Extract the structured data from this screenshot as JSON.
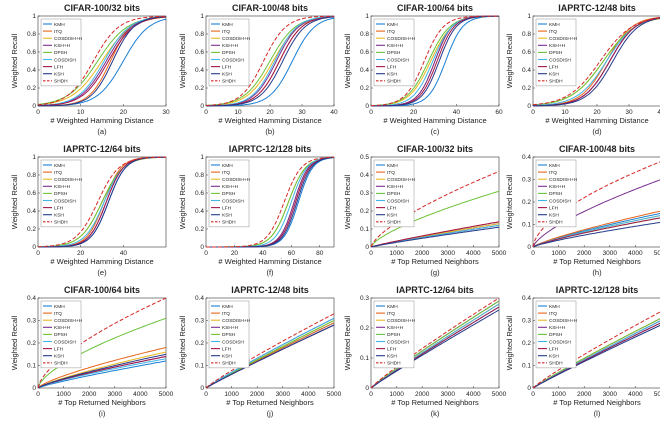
{
  "figure": {
    "legend_labels": [
      "KMH",
      "ITQ",
      "COSDISH+H",
      "KSH+H",
      "DPSH",
      "COSDISH",
      "LFH",
      "KSH",
      "SHDH"
    ],
    "series_colors": [
      "#1a7fd4",
      "#e8661a",
      "#e8b820",
      "#7a2f8f",
      "#6cc23a",
      "#3fb6e6",
      "#a3174a",
      "#243a8a",
      "#d62828"
    ]
  },
  "chart_data": [
    {
      "type": "line",
      "title": "CIFAR-100/32 bits",
      "xlabel": "# Weighted Hamming Distance",
      "ylabel": "Weighted Recall",
      "caption": "(a)",
      "xlim": [
        0,
        30
      ],
      "ylim": [
        0,
        1
      ],
      "xticks": [
        0,
        10,
        20,
        30
      ],
      "yticks": [
        0,
        0.2,
        0.4,
        0.6,
        0.8,
        1
      ],
      "legend": "top-left",
      "kind": "ham",
      "series": [
        {
          "name": "KMH",
          "center": 20,
          "width": 3.0
        },
        {
          "name": "ITQ",
          "center": 17,
          "width": 2.5
        },
        {
          "name": "COSDISH+H",
          "center": 15,
          "width": 3.5
        },
        {
          "name": "KSH+H",
          "center": 16,
          "width": 3.0
        },
        {
          "name": "DPSH",
          "center": 14,
          "width": 3.5
        },
        {
          "name": "COSDISH",
          "center": 15.5,
          "width": 3.0
        },
        {
          "name": "LFH",
          "center": 16.5,
          "width": 3.0
        },
        {
          "name": "KSH",
          "center": 17.5,
          "width": 2.5
        },
        {
          "name": "SHDH",
          "center": 13,
          "width": 3.0
        }
      ]
    },
    {
      "type": "line",
      "title": "CIFAR-100/48 bits",
      "xlabel": "# Weighted Hamming Distance",
      "ylabel": "Weighted Recall",
      "caption": "(b)",
      "xlim": [
        0,
        40
      ],
      "ylim": [
        0,
        1
      ],
      "xticks": [
        0,
        10,
        20,
        30,
        40
      ],
      "yticks": [
        0,
        0.2,
        0.4,
        0.6,
        0.8,
        1
      ],
      "legend": "top-left",
      "kind": "ham",
      "series": [
        {
          "name": "KMH",
          "center": 27,
          "width": 3.5
        },
        {
          "name": "ITQ",
          "center": 23,
          "width": 3.5
        },
        {
          "name": "COSDISH+H",
          "center": 21,
          "width": 4.0
        },
        {
          "name": "KSH+H",
          "center": 22,
          "width": 3.5
        },
        {
          "name": "DPSH",
          "center": 20,
          "width": 4.0
        },
        {
          "name": "COSDISH",
          "center": 21.5,
          "width": 3.5
        },
        {
          "name": "LFH",
          "center": 23,
          "width": 3.5
        },
        {
          "name": "KSH",
          "center": 24,
          "width": 3.5
        },
        {
          "name": "SHDH",
          "center": 18,
          "width": 3.5
        }
      ]
    },
    {
      "type": "line",
      "title": "CIFAR-100/64 bits",
      "xlabel": "# Weighted Hamming Distance",
      "ylabel": "Weighted Recall",
      "caption": "(c)",
      "xlim": [
        0,
        60
      ],
      "ylim": [
        0,
        1
      ],
      "xticks": [
        0,
        20,
        40,
        60
      ],
      "yticks": [
        0,
        0.2,
        0.4,
        0.6,
        0.8,
        1
      ],
      "legend": "top-left",
      "kind": "ham",
      "series": [
        {
          "name": "KMH",
          "center": 35,
          "width": 4.0
        },
        {
          "name": "ITQ",
          "center": 30,
          "width": 4.0
        },
        {
          "name": "COSDISH+H",
          "center": 28,
          "width": 5.0
        },
        {
          "name": "KSH+H",
          "center": 30,
          "width": 4.0
        },
        {
          "name": "DPSH",
          "center": 27,
          "width": 5.0
        },
        {
          "name": "COSDISH",
          "center": 29,
          "width": 4.5
        },
        {
          "name": "LFH",
          "center": 31,
          "width": 4.0
        },
        {
          "name": "KSH",
          "center": 32,
          "width": 4.0
        },
        {
          "name": "SHDH",
          "center": 25,
          "width": 4.5
        }
      ]
    },
    {
      "type": "line",
      "title": "IAPRTC-12/48 bits",
      "xlabel": "# Weighted Hamming Distance",
      "ylabel": "Weighted Recall",
      "caption": "(d)",
      "xlim": [
        0,
        40
      ],
      "ylim": [
        0,
        1
      ],
      "xticks": [
        0,
        10,
        20,
        30,
        40
      ],
      "yticks": [
        0,
        0.2,
        0.4,
        0.6,
        0.8,
        1
      ],
      "legend": "top-left",
      "kind": "ham",
      "series": [
        {
          "name": "KMH",
          "center": 24,
          "width": 4.0
        },
        {
          "name": "ITQ",
          "center": 23,
          "width": 4.0
        },
        {
          "name": "COSDISH+H",
          "center": 22,
          "width": 5.0
        },
        {
          "name": "KSH+H",
          "center": 24,
          "width": 4.0
        },
        {
          "name": "DPSH",
          "center": 22,
          "width": 5.0
        },
        {
          "name": "COSDISH",
          "center": 23,
          "width": 4.5
        },
        {
          "name": "LFH",
          "center": 24,
          "width": 4.0
        },
        {
          "name": "KSH",
          "center": 25,
          "width": 4.0
        },
        {
          "name": "SHDH",
          "center": 21,
          "width": 5.0
        }
      ]
    },
    {
      "type": "line",
      "title": "IAPRTC-12/64 bits",
      "xlabel": "# Weighted Hamming Distance",
      "ylabel": "Weighted Recall",
      "caption": "(e)",
      "xlim": [
        0,
        60
      ],
      "ylim": [
        0,
        1
      ],
      "xticks": [
        0,
        20,
        40
      ],
      "yticks": [
        0,
        0.2,
        0.4,
        0.6,
        0.8,
        1
      ],
      "legend": "top-left",
      "kind": "ham",
      "series": [
        {
          "name": "KMH",
          "center": 33,
          "width": 4.0
        },
        {
          "name": "ITQ",
          "center": 31,
          "width": 4.0
        },
        {
          "name": "COSDISH+H",
          "center": 30,
          "width": 5.0
        },
        {
          "name": "KSH+H",
          "center": 32,
          "width": 4.0
        },
        {
          "name": "DPSH",
          "center": 30,
          "width": 5.0
        },
        {
          "name": "COSDISH",
          "center": 31,
          "width": 4.5
        },
        {
          "name": "LFH",
          "center": 32,
          "width": 4.0
        },
        {
          "name": "KSH",
          "center": 33,
          "width": 4.0
        },
        {
          "name": "SHDH",
          "center": 28,
          "width": 5.0
        }
      ]
    },
    {
      "type": "line",
      "title": "IAPRTC-12/128 bits",
      "xlabel": "# Weighted Hamming Distance",
      "ylabel": "Weighted Recall",
      "caption": "(f)",
      "xlim": [
        0,
        90
      ],
      "ylim": [
        0,
        1
      ],
      "xticks": [
        0,
        20,
        40,
        60,
        80
      ],
      "yticks": [
        0,
        0.2,
        0.4,
        0.6,
        0.8,
        1
      ],
      "legend": "top-left",
      "kind": "ham",
      "series": [
        {
          "name": "KMH",
          "center": 65,
          "width": 5.0
        },
        {
          "name": "ITQ",
          "center": 62,
          "width": 5.0
        },
        {
          "name": "COSDISH+H",
          "center": 58,
          "width": 6.0
        },
        {
          "name": "KSH+H",
          "center": 62,
          "width": 5.0
        },
        {
          "name": "DPSH",
          "center": 58,
          "width": 6.0
        },
        {
          "name": "COSDISH",
          "center": 60,
          "width": 5.5
        },
        {
          "name": "LFH",
          "center": 63,
          "width": 5.0
        },
        {
          "name": "KSH",
          "center": 64,
          "width": 5.0
        },
        {
          "name": "SHDH",
          "center": 55,
          "width": 6.0
        }
      ]
    },
    {
      "type": "line",
      "title": "CIFAR-100/32 bits",
      "xlabel": "# Top Returned Neighbors",
      "ylabel": "Weighted Recall",
      "caption": "(g)",
      "xlim": [
        0,
        5000
      ],
      "ylim": [
        0,
        0.5
      ],
      "xticks": [
        0,
        1000,
        2000,
        3000,
        4000,
        5000
      ],
      "yticks": [
        0,
        0.1,
        0.2,
        0.3,
        0.4,
        0.5
      ],
      "legend": "top-left",
      "kind": "top",
      "series": [
        {
          "name": "KMH",
          "end": 0.13,
          "power": 0.9
        },
        {
          "name": "ITQ",
          "end": 0.14,
          "power": 0.9
        },
        {
          "name": "COSDISH+H",
          "end": 0.13,
          "power": 0.9
        },
        {
          "name": "KSH+H",
          "end": 0.12,
          "power": 0.9
        },
        {
          "name": "DPSH",
          "end": 0.31,
          "power": 0.7
        },
        {
          "name": "COSDISH",
          "end": 0.12,
          "power": 0.9
        },
        {
          "name": "LFH",
          "end": 0.14,
          "power": 0.9
        },
        {
          "name": "KSH",
          "end": 0.11,
          "power": 0.9
        },
        {
          "name": "SHDH",
          "end": 0.42,
          "power": 0.7
        }
      ]
    },
    {
      "type": "line",
      "title": "CIFAR-100/48 bits",
      "xlabel": "# Top Returned Neighbors",
      "ylabel": "Weighted Recall",
      "caption": "(h)",
      "xlim": [
        0,
        5000
      ],
      "ylim": [
        0,
        0.4
      ],
      "xticks": [
        0,
        1000,
        2000,
        3000,
        4000,
        5000
      ],
      "yticks": [
        0,
        0.1,
        0.2,
        0.3,
        0.4
      ],
      "legend": "top-left",
      "kind": "top",
      "series": [
        {
          "name": "KMH",
          "end": 0.15,
          "power": 0.8
        },
        {
          "name": "ITQ",
          "end": 0.16,
          "power": 0.8
        },
        {
          "name": "COSDISH+H",
          "end": 0.14,
          "power": 0.8
        },
        {
          "name": "KSH+H",
          "end": 0.3,
          "power": 0.7
        },
        {
          "name": "DPSH",
          "end": 0.13,
          "power": 0.8
        },
        {
          "name": "COSDISH",
          "end": 0.14,
          "power": 0.8
        },
        {
          "name": "LFH",
          "end": 0.13,
          "power": 0.8
        },
        {
          "name": "KSH",
          "end": 0.11,
          "power": 0.8
        },
        {
          "name": "SHDH",
          "end": 0.38,
          "power": 0.6
        }
      ]
    },
    {
      "type": "line",
      "title": "CIFAR-100/64 bits",
      "xlabel": "# Top Returned Neighbors",
      "ylabel": "Weighted Recall",
      "caption": "(i)",
      "xlim": [
        0,
        5000
      ],
      "ylim": [
        0,
        0.4
      ],
      "xticks": [
        0,
        1000,
        2000,
        3000,
        4000,
        5000
      ],
      "yticks": [
        0,
        0.1,
        0.2,
        0.3,
        0.4
      ],
      "legend": "top-left",
      "kind": "top",
      "series": [
        {
          "name": "KMH",
          "end": 0.12,
          "power": 0.85
        },
        {
          "name": "ITQ",
          "end": 0.18,
          "power": 0.75
        },
        {
          "name": "COSDISH+H",
          "end": 0.16,
          "power": 0.8
        },
        {
          "name": "KSH+H",
          "end": 0.14,
          "power": 0.8
        },
        {
          "name": "DPSH",
          "end": 0.31,
          "power": 0.65
        },
        {
          "name": "COSDISH",
          "end": 0.13,
          "power": 0.8
        },
        {
          "name": "LFH",
          "end": 0.14,
          "power": 0.8
        },
        {
          "name": "KSH",
          "end": 0.15,
          "power": 0.8
        },
        {
          "name": "SHDH",
          "end": 0.4,
          "power": 0.65
        }
      ]
    },
    {
      "type": "line",
      "title": "IAPRTC-12/48 bits",
      "xlabel": "# Top Returned Neighbors",
      "ylabel": "Weighted Recall",
      "caption": "(j)",
      "xlim": [
        0,
        5000
      ],
      "ylim": [
        0,
        0.4
      ],
      "xticks": [
        0,
        1000,
        2000,
        3000,
        4000,
        5000
      ],
      "yticks": [
        0,
        0.1,
        0.2,
        0.3,
        0.4
      ],
      "legend": "top-left",
      "kind": "top",
      "series": [
        {
          "name": "KMH",
          "end": 0.29,
          "power": 0.95
        },
        {
          "name": "ITQ",
          "end": 0.29,
          "power": 0.95
        },
        {
          "name": "COSDISH+H",
          "end": 0.3,
          "power": 0.95
        },
        {
          "name": "KSH+H",
          "end": 0.31,
          "power": 0.93
        },
        {
          "name": "DPSH",
          "end": 0.3,
          "power": 0.95
        },
        {
          "name": "COSDISH",
          "end": 0.31,
          "power": 0.93
        },
        {
          "name": "LFH",
          "end": 0.28,
          "power": 0.95
        },
        {
          "name": "KSH",
          "end": 0.28,
          "power": 0.95
        },
        {
          "name": "SHDH",
          "end": 0.33,
          "power": 0.9
        }
      ]
    },
    {
      "type": "line",
      "title": "IAPRTC-12/64 bits",
      "xlabel": "# Top Returned Neighbors",
      "ylabel": "Weighted Recall",
      "caption": "(k)",
      "xlim": [
        0,
        5000
      ],
      "ylim": [
        0,
        0.3
      ],
      "xticks": [
        0,
        1000,
        2000,
        3000,
        4000,
        5000
      ],
      "yticks": [
        0,
        0.1,
        0.2,
        0.3
      ],
      "legend": "top-left",
      "kind": "top",
      "series": [
        {
          "name": "KMH",
          "end": 0.27,
          "power": 0.95
        },
        {
          "name": "ITQ",
          "end": 0.28,
          "power": 0.95
        },
        {
          "name": "COSDISH+H",
          "end": 0.28,
          "power": 0.95
        },
        {
          "name": "KSH+H",
          "end": 0.29,
          "power": 0.93
        },
        {
          "name": "DPSH",
          "end": 0.29,
          "power": 0.93
        },
        {
          "name": "COSDISH",
          "end": 0.28,
          "power": 0.95
        },
        {
          "name": "LFH",
          "end": 0.27,
          "power": 0.95
        },
        {
          "name": "KSH",
          "end": 0.26,
          "power": 0.95
        },
        {
          "name": "SHDH",
          "end": 0.3,
          "power": 0.9
        }
      ]
    },
    {
      "type": "line",
      "title": "IAPRTC-12/128 bits",
      "xlabel": "# Top Returned Neighbors",
      "ylabel": "Weighted Recall",
      "caption": "(l)",
      "xlim": [
        0,
        5000
      ],
      "ylim": [
        0,
        0.4
      ],
      "xticks": [
        0,
        1000,
        2000,
        3000,
        4000,
        5000
      ],
      "yticks": [
        0,
        0.1,
        0.2,
        0.3,
        0.4
      ],
      "legend": "top-left",
      "kind": "top",
      "series": [
        {
          "name": "KMH",
          "end": 0.29,
          "power": 0.95
        },
        {
          "name": "ITQ",
          "end": 0.31,
          "power": 0.93
        },
        {
          "name": "COSDISH+H",
          "end": 0.3,
          "power": 0.95
        },
        {
          "name": "KSH+H",
          "end": 0.3,
          "power": 0.95
        },
        {
          "name": "DPSH",
          "end": 0.31,
          "power": 0.93
        },
        {
          "name": "COSDISH",
          "end": 0.3,
          "power": 0.95
        },
        {
          "name": "LFH",
          "end": 0.29,
          "power": 0.95
        },
        {
          "name": "KSH",
          "end": 0.28,
          "power": 0.95
        },
        {
          "name": "SHDH",
          "end": 0.34,
          "power": 0.9
        }
      ]
    }
  ]
}
